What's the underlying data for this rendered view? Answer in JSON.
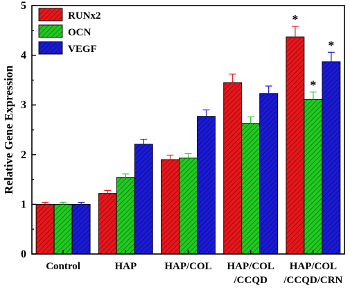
{
  "chart_data": {
    "type": "bar",
    "ylabel": "Relative Gene Expression",
    "xlabel": "",
    "ylim": [
      0,
      5
    ],
    "yticks": [
      0,
      1,
      2,
      3,
      4,
      5
    ],
    "grid": false,
    "legend_position": "top-left",
    "categories": [
      [
        "Control"
      ],
      [
        "HAP"
      ],
      [
        "HAP/COL"
      ],
      [
        "HAP/COL",
        "/CCQD"
      ],
      [
        "HAP/COL",
        "/CCQD/CRN"
      ]
    ],
    "series": [
      {
        "name": "RUNx2",
        "color": "#e8161b",
        "values": [
          1.0,
          1.22,
          1.9,
          3.45,
          4.37
        ],
        "errors": [
          0.04,
          0.06,
          0.09,
          0.17,
          0.21
        ],
        "significant": [
          false,
          false,
          false,
          false,
          true
        ]
      },
      {
        "name": "OCN",
        "color": "#21c921",
        "values": [
          1.0,
          1.54,
          1.93,
          2.63,
          3.11
        ],
        "errors": [
          0.04,
          0.07,
          0.09,
          0.13,
          0.15
        ],
        "significant": [
          false,
          false,
          false,
          false,
          true
        ]
      },
      {
        "name": "VEGF",
        "color": "#1a1ad6",
        "values": [
          1.0,
          2.21,
          2.77,
          3.23,
          3.87
        ],
        "errors": [
          0.04,
          0.1,
          0.13,
          0.15,
          0.19
        ],
        "significant": [
          false,
          false,
          false,
          false,
          true
        ]
      }
    ],
    "significance_mark": "*"
  }
}
